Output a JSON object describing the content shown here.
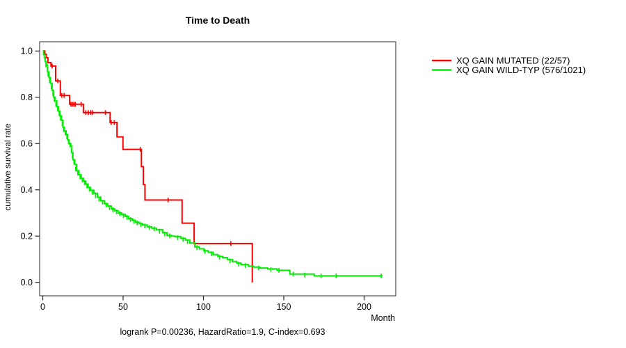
{
  "title": "Time to Death",
  "caption": "logrank P=0.00236, HazardRatio=1.9, C-index=0.693",
  "legend": {
    "items": [
      {
        "label": "XQ GAIN MUTATED (22/57)",
        "color": "#ff0000"
      },
      {
        "label": "XQ GAIN WILD-TYP (576/1021)",
        "color": "#00ee00"
      }
    ]
  },
  "chart_data": {
    "type": "line",
    "subtype": "kaplan-meier-step",
    "title": "Time to Death",
    "xlabel": "Month",
    "ylabel": "cumulative survival rate",
    "xlim": [
      0,
      220
    ],
    "ylim": [
      0.0,
      1.0
    ],
    "grid": false,
    "legend_position": "outside-right",
    "x_ticks": [
      0,
      50,
      100,
      150,
      200
    ],
    "x_tick_labels": [
      "0",
      "50",
      "100",
      "150",
      "200"
    ],
    "y_ticks": [
      0.0,
      0.2,
      0.4,
      0.6,
      0.8,
      1.0
    ],
    "y_tick_labels": [
      "0.0",
      "0.2",
      "0.4",
      "0.6",
      "0.8",
      "1.0"
    ],
    "annotation": "logrank P=0.00236, HazardRatio=1.9, C-index=0.693",
    "series": [
      {
        "name": "XQ GAIN MUTATED (22/57)",
        "color": "#ff0000",
        "events": "22/57",
        "steps": [
          [
            0,
            1.0
          ],
          [
            1.3,
            0.986
          ],
          [
            2.2,
            0.971
          ],
          [
            3.2,
            0.95
          ],
          [
            5.1,
            0.935
          ],
          [
            8.0,
            0.871
          ],
          [
            10.9,
            0.808
          ],
          [
            16.7,
            0.77
          ],
          [
            25.3,
            0.734
          ],
          [
            41.9,
            0.691
          ],
          [
            46.2,
            0.629
          ],
          [
            49.9,
            0.575
          ],
          [
            61.4,
            0.5
          ],
          [
            62.6,
            0.423
          ],
          [
            63.6,
            0.356
          ],
          [
            86.7,
            0.256
          ],
          [
            94.2,
            0.168
          ],
          [
            130.4,
            0.0
          ]
        ],
        "censor_ticks": [
          [
            5.8,
            0.935
          ],
          [
            9.4,
            0.871
          ],
          [
            11.8,
            0.808
          ],
          [
            13.3,
            0.808
          ],
          [
            17.5,
            0.77
          ],
          [
            18.4,
            0.77
          ],
          [
            19.3,
            0.77
          ],
          [
            20.2,
            0.77
          ],
          [
            23.9,
            0.77
          ],
          [
            26.8,
            0.734
          ],
          [
            28.3,
            0.734
          ],
          [
            29.8,
            0.734
          ],
          [
            31.1,
            0.734
          ],
          [
            39.0,
            0.734
          ],
          [
            42.6,
            0.691
          ],
          [
            44.5,
            0.691
          ],
          [
            60.7,
            0.575
          ],
          [
            78.0,
            0.356
          ],
          [
            117.0,
            0.168
          ]
        ]
      },
      {
        "name": "XQ GAIN WILD-TYP (576/1021)",
        "color": "#00ee00",
        "events": "576/1021",
        "steps": [
          [
            0,
            1.0
          ],
          [
            0.5,
            0.985
          ],
          [
            1.0,
            0.97
          ],
          [
            1.5,
            0.955
          ],
          [
            2.0,
            0.94
          ],
          [
            2.9,
            0.91
          ],
          [
            3.8,
            0.885
          ],
          [
            4.8,
            0.86
          ],
          [
            5.8,
            0.83
          ],
          [
            6.8,
            0.8
          ],
          [
            7.7,
            0.785
          ],
          [
            8.7,
            0.76
          ],
          [
            9.7,
            0.74
          ],
          [
            10.6,
            0.72
          ],
          [
            11.6,
            0.7
          ],
          [
            12.6,
            0.67
          ],
          [
            13.5,
            0.655
          ],
          [
            14.5,
            0.64
          ],
          [
            15.5,
            0.615
          ],
          [
            16.4,
            0.6
          ],
          [
            17.4,
            0.59
          ],
          [
            18.1,
            0.56
          ],
          [
            18.8,
            0.53
          ],
          [
            19.9,
            0.51
          ],
          [
            21.0,
            0.483
          ],
          [
            22.5,
            0.465
          ],
          [
            23.9,
            0.45
          ],
          [
            25.3,
            0.438
          ],
          [
            26.8,
            0.425
          ],
          [
            28.2,
            0.41
          ],
          [
            29.7,
            0.398
          ],
          [
            31.8,
            0.385
          ],
          [
            34.0,
            0.368
          ],
          [
            36.1,
            0.353
          ],
          [
            38.3,
            0.34
          ],
          [
            40.4,
            0.33
          ],
          [
            42.6,
            0.318
          ],
          [
            44.8,
            0.31
          ],
          [
            46.9,
            0.3
          ],
          [
            49.1,
            0.293
          ],
          [
            51.3,
            0.285
          ],
          [
            53.4,
            0.276
          ],
          [
            55.6,
            0.268
          ],
          [
            57.7,
            0.26
          ],
          [
            59.9,
            0.254
          ],
          [
            62.1,
            0.248
          ],
          [
            65.0,
            0.24
          ],
          [
            67.9,
            0.234
          ],
          [
            70.8,
            0.228
          ],
          [
            74.6,
            0.215
          ],
          [
            77.3,
            0.203
          ],
          [
            80.0,
            0.2
          ],
          [
            82.3,
            0.198
          ],
          [
            85.9,
            0.19
          ],
          [
            88.8,
            0.183
          ],
          [
            91.5,
            0.17
          ],
          [
            94.6,
            0.153
          ],
          [
            97.5,
            0.145
          ],
          [
            100.3,
            0.137
          ],
          [
            103.0,
            0.13
          ],
          [
            106.0,
            0.12
          ],
          [
            109.0,
            0.112
          ],
          [
            111.9,
            0.107
          ],
          [
            115.0,
            0.098
          ],
          [
            118.0,
            0.09
          ],
          [
            120.7,
            0.083
          ],
          [
            123.4,
            0.077
          ],
          [
            128.0,
            0.07
          ],
          [
            131.0,
            0.066
          ],
          [
            135.0,
            0.062
          ],
          [
            140.0,
            0.058
          ],
          [
            145.8,
            0.052
          ],
          [
            153.8,
            0.036
          ],
          [
            168.9,
            0.028
          ],
          [
            211.5,
            0.028
          ]
        ],
        "censor_ticks": [
          [
            2.0,
            0.94
          ],
          [
            3.3,
            0.9
          ],
          [
            4.3,
            0.872
          ],
          [
            5.3,
            0.845
          ],
          [
            6.3,
            0.815
          ],
          [
            7.2,
            0.79
          ],
          [
            8.2,
            0.77
          ],
          [
            9.2,
            0.75
          ],
          [
            10.2,
            0.73
          ],
          [
            11.1,
            0.71
          ],
          [
            12.1,
            0.685
          ],
          [
            13.0,
            0.66
          ],
          [
            14.0,
            0.645
          ],
          [
            15.0,
            0.628
          ],
          [
            16.0,
            0.608
          ],
          [
            17.0,
            0.593
          ],
          [
            17.8,
            0.57
          ],
          [
            18.5,
            0.545
          ],
          [
            19.4,
            0.52
          ],
          [
            20.5,
            0.49
          ],
          [
            21.8,
            0.472
          ],
          [
            23.2,
            0.456
          ],
          [
            24.6,
            0.442
          ],
          [
            26.0,
            0.43
          ],
          [
            27.5,
            0.417
          ],
          [
            29.0,
            0.404
          ],
          [
            30.8,
            0.39
          ],
          [
            32.9,
            0.374
          ],
          [
            35.0,
            0.36
          ],
          [
            37.2,
            0.347
          ],
          [
            39.4,
            0.335
          ],
          [
            41.5,
            0.324
          ],
          [
            43.7,
            0.314
          ],
          [
            45.9,
            0.305
          ],
          [
            48.0,
            0.297
          ],
          [
            50.2,
            0.289
          ],
          [
            52.4,
            0.281
          ],
          [
            54.5,
            0.272
          ],
          [
            56.7,
            0.264
          ],
          [
            58.8,
            0.257
          ],
          [
            61.0,
            0.25
          ],
          [
            63.5,
            0.244
          ],
          [
            66.5,
            0.237
          ],
          [
            69.4,
            0.231
          ],
          [
            72.7,
            0.221
          ],
          [
            75.9,
            0.209
          ],
          [
            79.0,
            0.201
          ],
          [
            84.0,
            0.193
          ],
          [
            87.3,
            0.186
          ],
          [
            90.1,
            0.176
          ],
          [
            96.0,
            0.15
          ],
          [
            100.9,
            0.134
          ],
          [
            105.0,
            0.124
          ],
          [
            110.0,
            0.109
          ],
          [
            116.5,
            0.093
          ],
          [
            122.0,
            0.079
          ],
          [
            126.0,
            0.073
          ],
          [
            134.3,
            0.062
          ],
          [
            142.0,
            0.055
          ],
          [
            147.0,
            0.052
          ],
          [
            155.9,
            0.036
          ],
          [
            163.0,
            0.032
          ],
          [
            173.2,
            0.028
          ],
          [
            182.6,
            0.028
          ],
          [
            210.6,
            0.028
          ]
        ]
      }
    ]
  }
}
